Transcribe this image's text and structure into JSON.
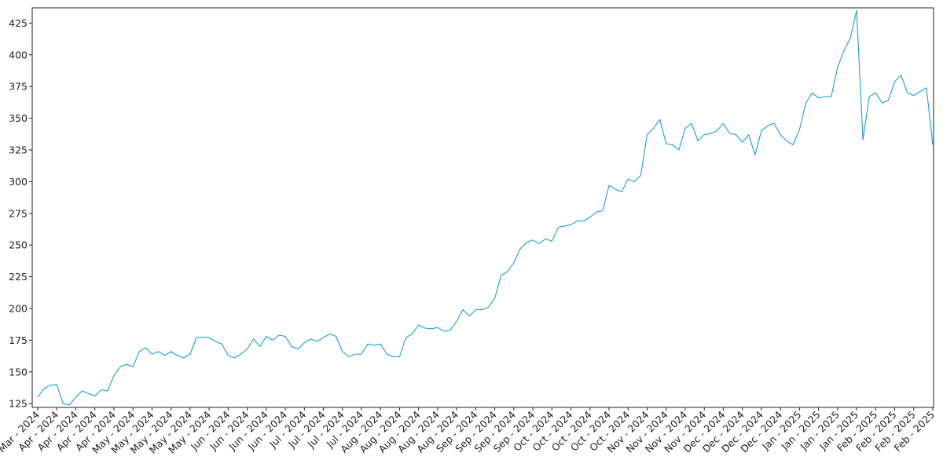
{
  "chart_data": {
    "type": "line",
    "color": "#1a9fd9",
    "ylim": [
      122,
      437
    ],
    "yticks": [
      125,
      150,
      175,
      200,
      225,
      250,
      275,
      300,
      325,
      350,
      375,
      400,
      425
    ],
    "categories": [
      "Mar - 2024",
      null,
      null,
      "Apr - 2024",
      null,
      null,
      "Apr - 2024",
      null,
      null,
      "Apr - 2024",
      null,
      null,
      "Apr - 2024",
      null,
      null,
      "May - 2024",
      null,
      null,
      "May - 2024",
      null,
      null,
      "May - 2024",
      null,
      null,
      "May - 2024",
      null,
      null,
      "May - 2024",
      null,
      null,
      "Jun - 2024",
      null,
      null,
      "Jun - 2024",
      null,
      null,
      "Jun - 2024",
      null,
      null,
      "Jun - 2024",
      null,
      null,
      "Jul - 2024",
      null,
      null,
      "Jul - 2024",
      null,
      null,
      "Jul - 2024",
      null,
      null,
      "Jul - 2024",
      null,
      null,
      "Aug - 2024",
      null,
      null,
      "Aug - 2024",
      null,
      null,
      "Aug - 2024",
      null,
      null,
      "Aug - 2024",
      null,
      null,
      "Aug - 2024",
      null,
      null,
      "Sep - 2024",
      null,
      null,
      "Sep - 2024",
      null,
      null,
      "Sep - 2024",
      null,
      null,
      "Sep - 2024",
      null,
      null,
      "Oct - 2024",
      null,
      null,
      "Oct - 2024",
      null,
      null,
      "Oct - 2024",
      null,
      null,
      "Oct - 2024",
      null,
      null,
      "Oct - 2024",
      null,
      null,
      "Nov - 2024",
      null,
      null,
      "Nov - 2024",
      null,
      null,
      "Nov - 2024",
      null,
      null,
      "Nov - 2024",
      null,
      null,
      "Dec - 2024",
      null,
      null,
      "Dec - 2024",
      null,
      null,
      "Dec - 2024",
      null,
      null,
      "Dec - 2024",
      null,
      null,
      "Jan - 2025",
      null,
      null,
      "Jan - 2025",
      null,
      null,
      "Jan - 2025",
      null,
      null,
      "Jan - 2025",
      null,
      null,
      "Feb - 2025",
      null,
      null,
      "Feb - 2025",
      null,
      null,
      "Feb - 2025",
      null,
      null,
      "Feb - 2025"
    ],
    "values": [
      130,
      137,
      139.5,
      140,
      125,
      124,
      130,
      135,
      133,
      131,
      136,
      135,
      147,
      154,
      156,
      154,
      166,
      169,
      164,
      166,
      163,
      166,
      163,
      161,
      164,
      177,
      177.5,
      177,
      174,
      172,
      163,
      161,
      164,
      168,
      176,
      170,
      178,
      175,
      179,
      178,
      170,
      168,
      173,
      176,
      174,
      177,
      180,
      178,
      166,
      162,
      164,
      164,
      172,
      171,
      172,
      164,
      162,
      162,
      177,
      180,
      187,
      184.5,
      184,
      185,
      182,
      183,
      190,
      199,
      194,
      199,
      199,
      201,
      208,
      226,
      229,
      236,
      247,
      252,
      254,
      251,
      255,
      253,
      264,
      265,
      266,
      269,
      269,
      272,
      276,
      277,
      297,
      294,
      292,
      302,
      300,
      305,
      337,
      342,
      349,
      330,
      329,
      325,
      342,
      346,
      332,
      337,
      338,
      340,
      346,
      338,
      337,
      331,
      337,
      321,
      340,
      344,
      346,
      337,
      332,
      329,
      341,
      362,
      370,
      366,
      367,
      367,
      390,
      403,
      413,
      435,
      333,
      367,
      370,
      362,
      364,
      379,
      384,
      370,
      368,
      371,
      374,
      329
    ]
  }
}
